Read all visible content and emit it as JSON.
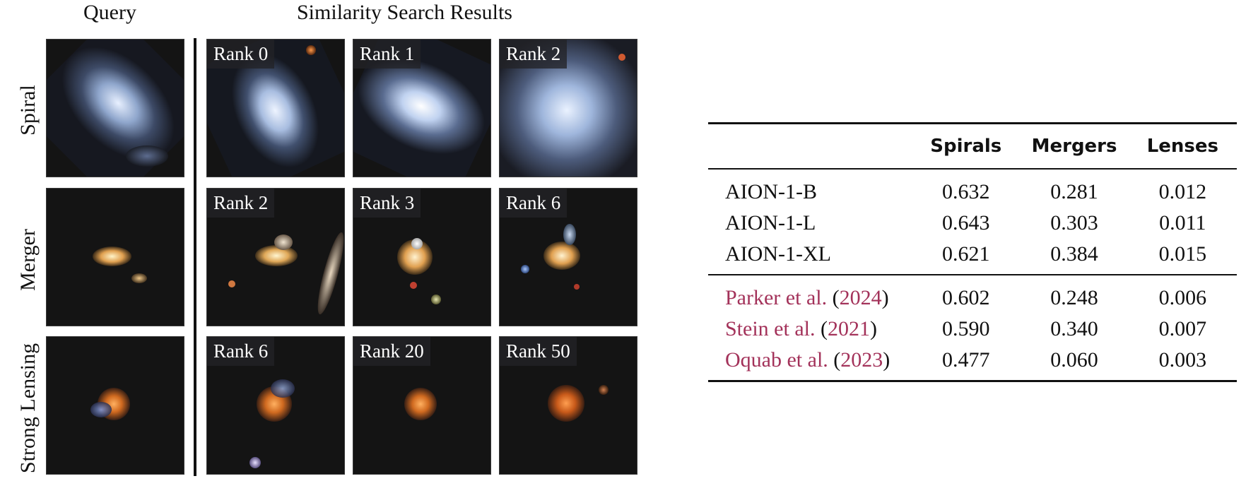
{
  "headers": {
    "query": "Query",
    "results": "Similarity Search Results"
  },
  "rows": [
    {
      "label": "Spiral",
      "ranks": [
        "Rank 0",
        "Rank 1",
        "Rank 2"
      ]
    },
    {
      "label": "Merger",
      "ranks": [
        "Rank 2",
        "Rank 3",
        "Rank 6"
      ]
    },
    {
      "label": "Strong Lensing",
      "ranks": [
        "Rank 6",
        "Rank 20",
        "Rank 50"
      ]
    }
  ],
  "table": {
    "columns": [
      "",
      "Spirals",
      "Mergers",
      "Lenses"
    ],
    "models": [
      {
        "name": "AION-1-B",
        "values": [
          "0.632",
          "0.281",
          "0.012"
        ]
      },
      {
        "name": "AION-1-L",
        "values": [
          "0.643",
          "0.303",
          "0.011"
        ]
      },
      {
        "name": "AION-1-XL",
        "values": [
          "0.621",
          "0.384",
          "0.015"
        ]
      }
    ],
    "baselines": [
      {
        "author": "Parker et al. ",
        "year": "2024",
        "values": [
          "0.602",
          "0.248",
          "0.006"
        ]
      },
      {
        "author": "Stein et al. ",
        "year": "2021",
        "values": [
          "0.590",
          "0.340",
          "0.007"
        ]
      },
      {
        "author": "Oquab et al. ",
        "year": "2023",
        "values": [
          "0.477",
          "0.060",
          "0.003"
        ]
      }
    ],
    "paren_open": "(",
    "paren_close": ")"
  },
  "colors": {
    "citation": "#a3325a"
  }
}
